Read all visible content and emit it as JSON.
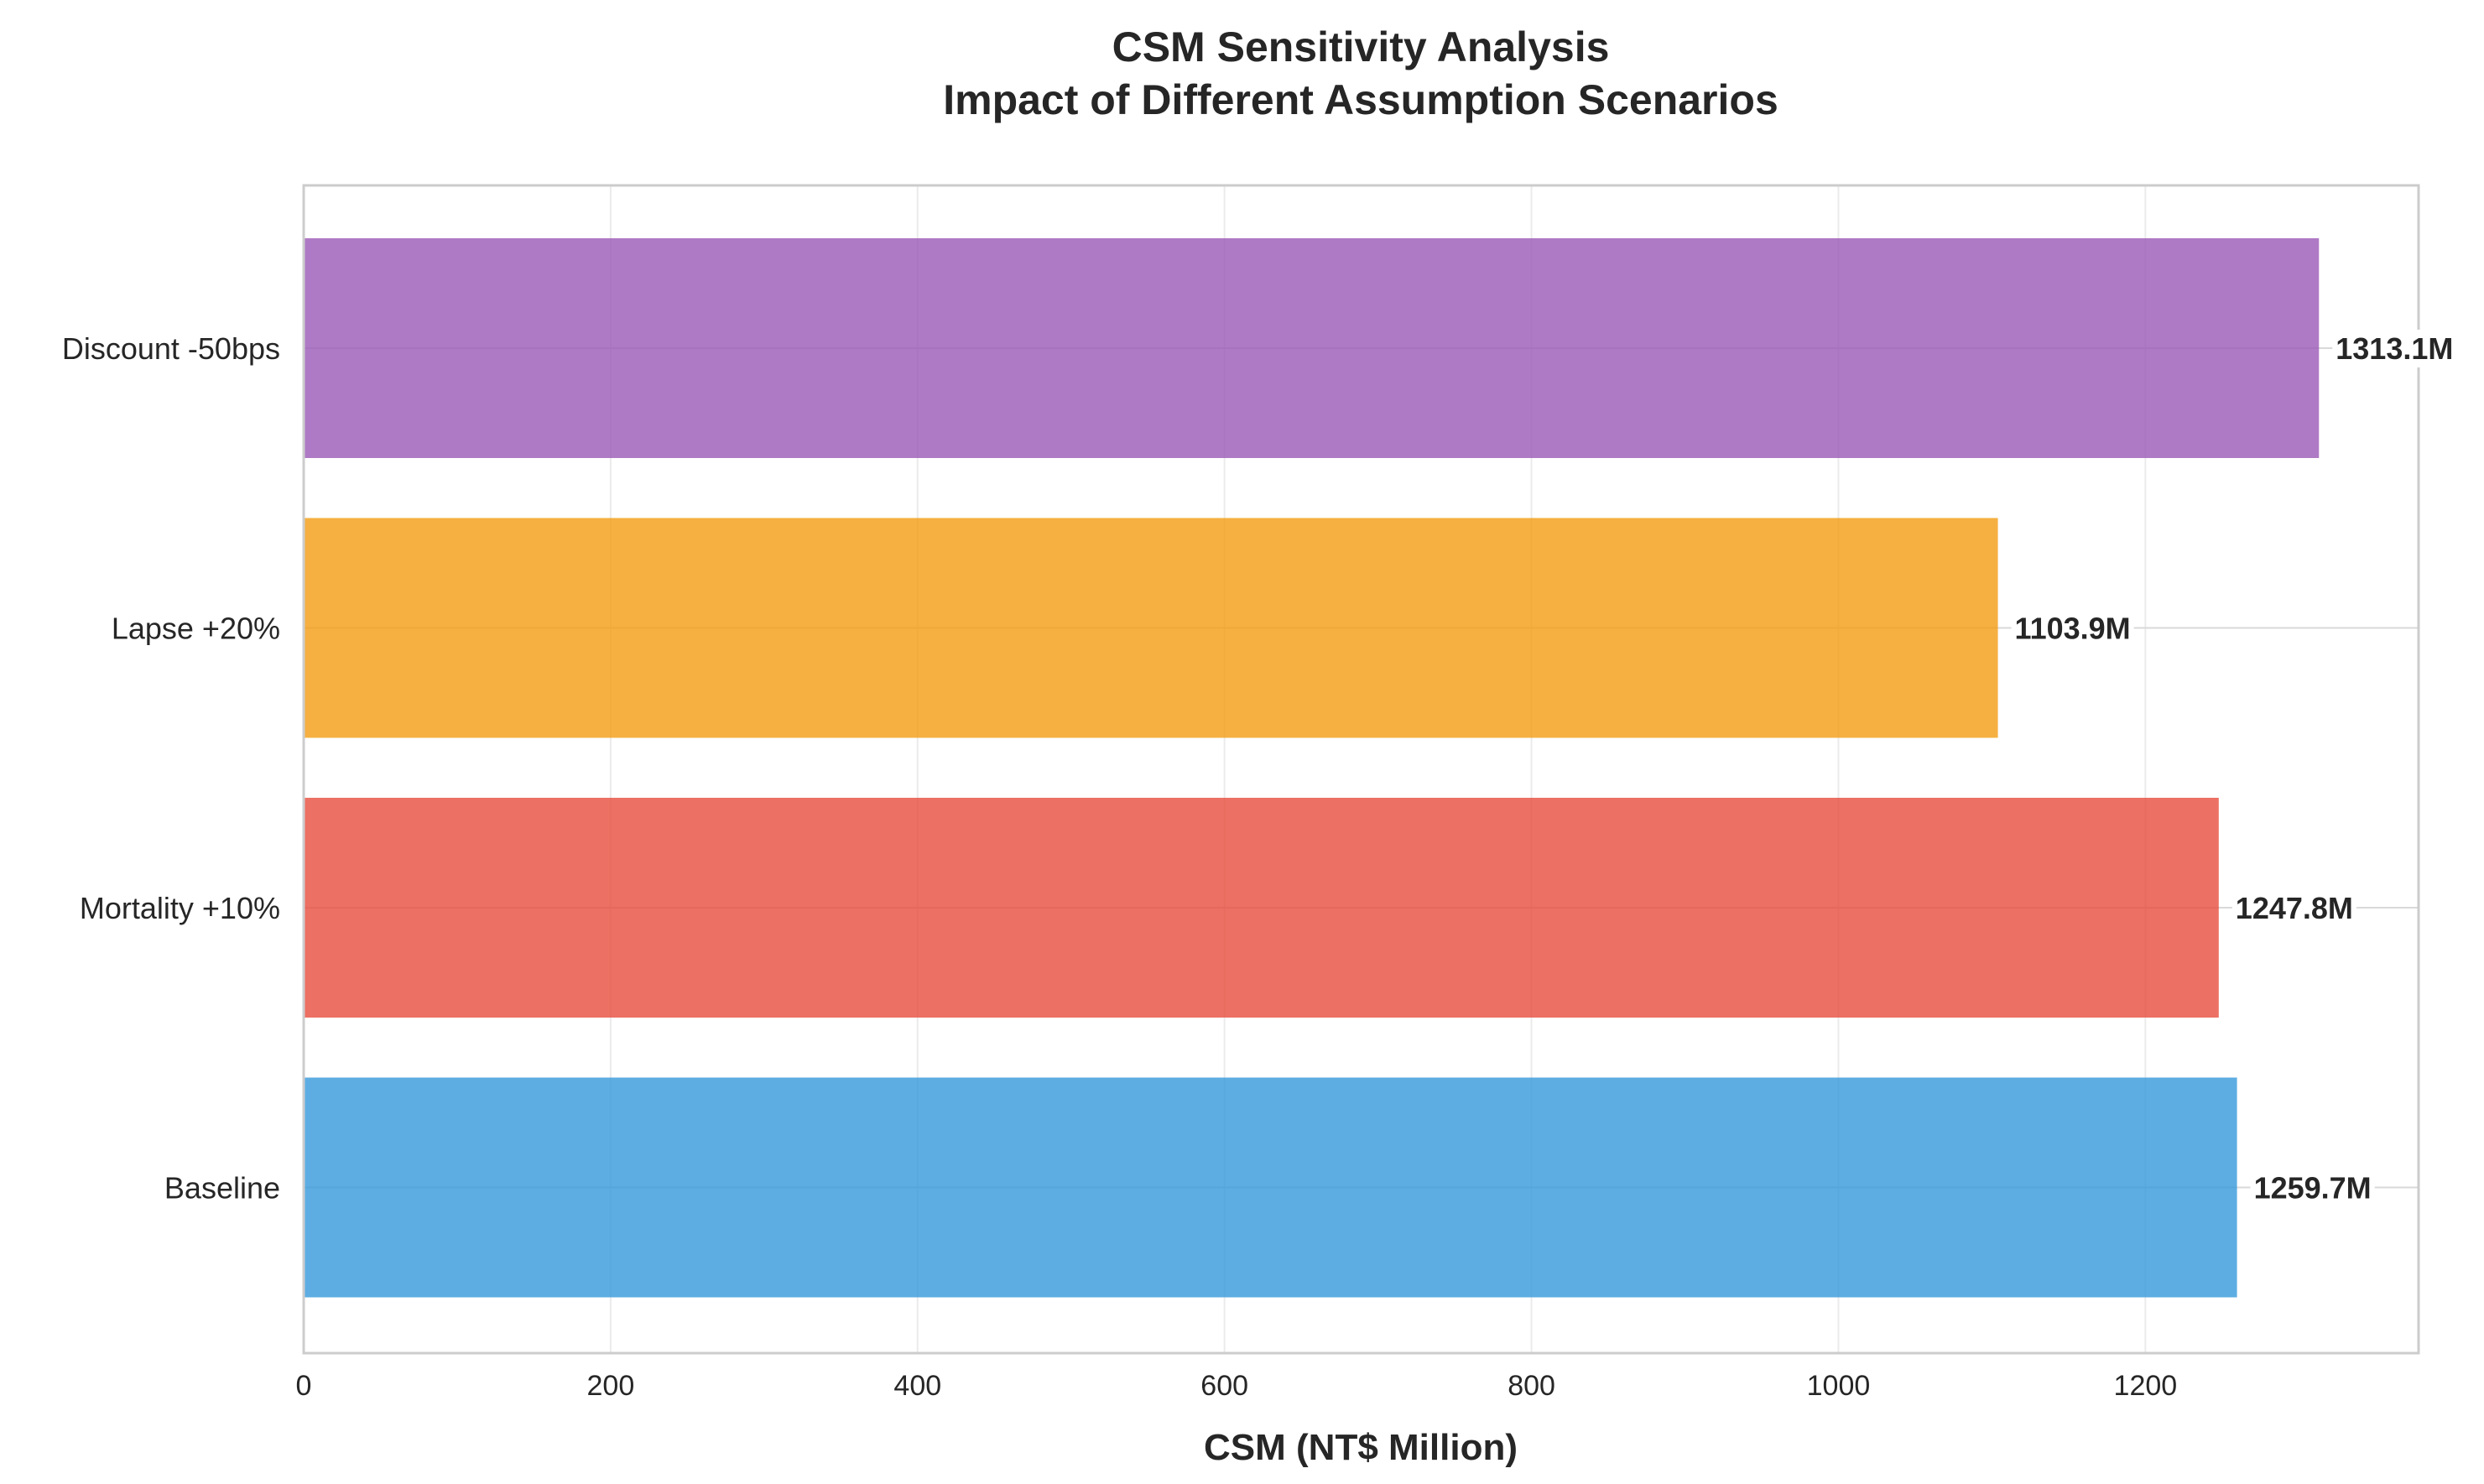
{
  "chart_data": {
    "type": "bar",
    "orientation": "horizontal",
    "title": [
      "CSM Sensitivity Analysis",
      "Impact of Different Assumption Scenarios"
    ],
    "xlabel": "CSM (NT$ Million)",
    "ylabel": "",
    "xlim": [
      0,
      1378
    ],
    "x_ticks": [
      0,
      200,
      400,
      600,
      800,
      1000,
      1200
    ],
    "grid": true,
    "categories": [
      "Baseline",
      "Mortality +10%",
      "Lapse +20%",
      "Discount -50bps"
    ],
    "values": [
      1259.7,
      1247.8,
      1103.9,
      1313.1
    ],
    "value_labels": [
      "1259.7M",
      "1247.8M",
      "1103.9M",
      "1313.1M"
    ],
    "colors": [
      "#3498db",
      "#e74c3c",
      "#f39c12",
      "#9b59b6"
    ]
  }
}
